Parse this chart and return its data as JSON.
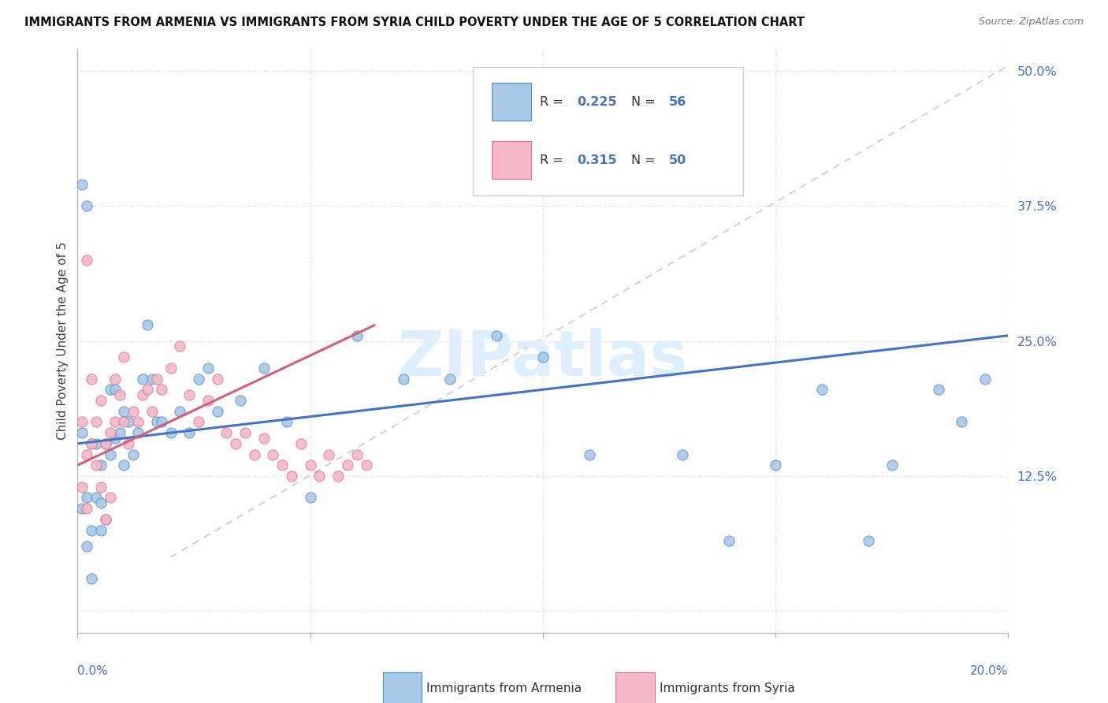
{
  "title": "IMMIGRANTS FROM ARMENIA VS IMMIGRANTS FROM SYRIA CHILD POVERTY UNDER THE AGE OF 5 CORRELATION CHART",
  "source": "Source: ZipAtlas.com",
  "ylabel": "Child Poverty Under the Age of 5",
  "xlim": [
    0.0,
    0.2
  ],
  "ylim": [
    -0.02,
    0.52
  ],
  "armenia_color": "#a8c8e8",
  "armenia_edge": "#5090c0",
  "syria_color": "#f4b8c8",
  "syria_edge": "#e07090",
  "trend_armenia_color": "#4472c4",
  "trend_syria_color": "#d06080",
  "trend_dashed_color": "#c8c8c8",
  "label_color": "#4472c4",
  "watermark_color": "#ddeeff",
  "legend_label_armenia": "Immigrants from Armenia",
  "legend_label_syria": "Immigrants from Syria",
  "armenia_R": "0.225",
  "armenia_N": "56",
  "syria_R": "0.315",
  "syria_N": "50",
  "armenia_x": [
    0.001,
    0.001,
    0.001,
    0.002,
    0.002,
    0.003,
    0.003,
    0.004,
    0.004,
    0.005,
    0.005,
    0.005,
    0.006,
    0.006,
    0.007,
    0.007,
    0.008,
    0.008,
    0.009,
    0.01,
    0.01,
    0.011,
    0.012,
    0.013,
    0.014,
    0.015,
    0.016,
    0.017,
    0.018,
    0.02,
    0.022,
    0.024,
    0.026,
    0.028,
    0.03,
    0.035,
    0.04,
    0.045,
    0.05,
    0.06,
    0.07,
    0.08,
    0.09,
    0.1,
    0.11,
    0.13,
    0.14,
    0.15,
    0.16,
    0.17,
    0.175,
    0.185,
    0.19,
    0.195,
    0.002,
    0.003
  ],
  "armenia_y": [
    0.165,
    0.095,
    0.395,
    0.105,
    0.375,
    0.155,
    0.075,
    0.155,
    0.105,
    0.135,
    0.075,
    0.1,
    0.155,
    0.085,
    0.205,
    0.145,
    0.205,
    0.16,
    0.165,
    0.185,
    0.135,
    0.175,
    0.145,
    0.165,
    0.215,
    0.265,
    0.215,
    0.175,
    0.175,
    0.165,
    0.185,
    0.165,
    0.215,
    0.225,
    0.185,
    0.195,
    0.225,
    0.175,
    0.105,
    0.255,
    0.215,
    0.215,
    0.255,
    0.235,
    0.145,
    0.145,
    0.065,
    0.135,
    0.205,
    0.065,
    0.135,
    0.205,
    0.175,
    0.215,
    0.06,
    0.03
  ],
  "syria_x": [
    0.001,
    0.001,
    0.002,
    0.002,
    0.003,
    0.003,
    0.004,
    0.004,
    0.005,
    0.005,
    0.006,
    0.006,
    0.007,
    0.007,
    0.008,
    0.008,
    0.009,
    0.01,
    0.01,
    0.011,
    0.012,
    0.013,
    0.014,
    0.015,
    0.016,
    0.017,
    0.018,
    0.02,
    0.022,
    0.024,
    0.026,
    0.028,
    0.03,
    0.032,
    0.034,
    0.036,
    0.038,
    0.04,
    0.042,
    0.044,
    0.046,
    0.048,
    0.05,
    0.052,
    0.054,
    0.056,
    0.058,
    0.06,
    0.062,
    0.002
  ],
  "syria_y": [
    0.175,
    0.115,
    0.145,
    0.095,
    0.155,
    0.215,
    0.175,
    0.135,
    0.195,
    0.115,
    0.155,
    0.085,
    0.165,
    0.105,
    0.215,
    0.175,
    0.2,
    0.175,
    0.235,
    0.155,
    0.185,
    0.175,
    0.2,
    0.205,
    0.185,
    0.215,
    0.205,
    0.225,
    0.245,
    0.2,
    0.175,
    0.195,
    0.215,
    0.165,
    0.155,
    0.165,
    0.145,
    0.16,
    0.145,
    0.135,
    0.125,
    0.155,
    0.135,
    0.125,
    0.145,
    0.125,
    0.135,
    0.145,
    0.135,
    0.325
  ],
  "ytick_positions": [
    0.0,
    0.125,
    0.25,
    0.375,
    0.5
  ],
  "ytick_labels": [
    "",
    "12.5%",
    "25.0%",
    "37.5%",
    "50.0%"
  ],
  "xtick_positions": [
    0.0,
    0.05,
    0.1,
    0.15,
    0.2
  ]
}
